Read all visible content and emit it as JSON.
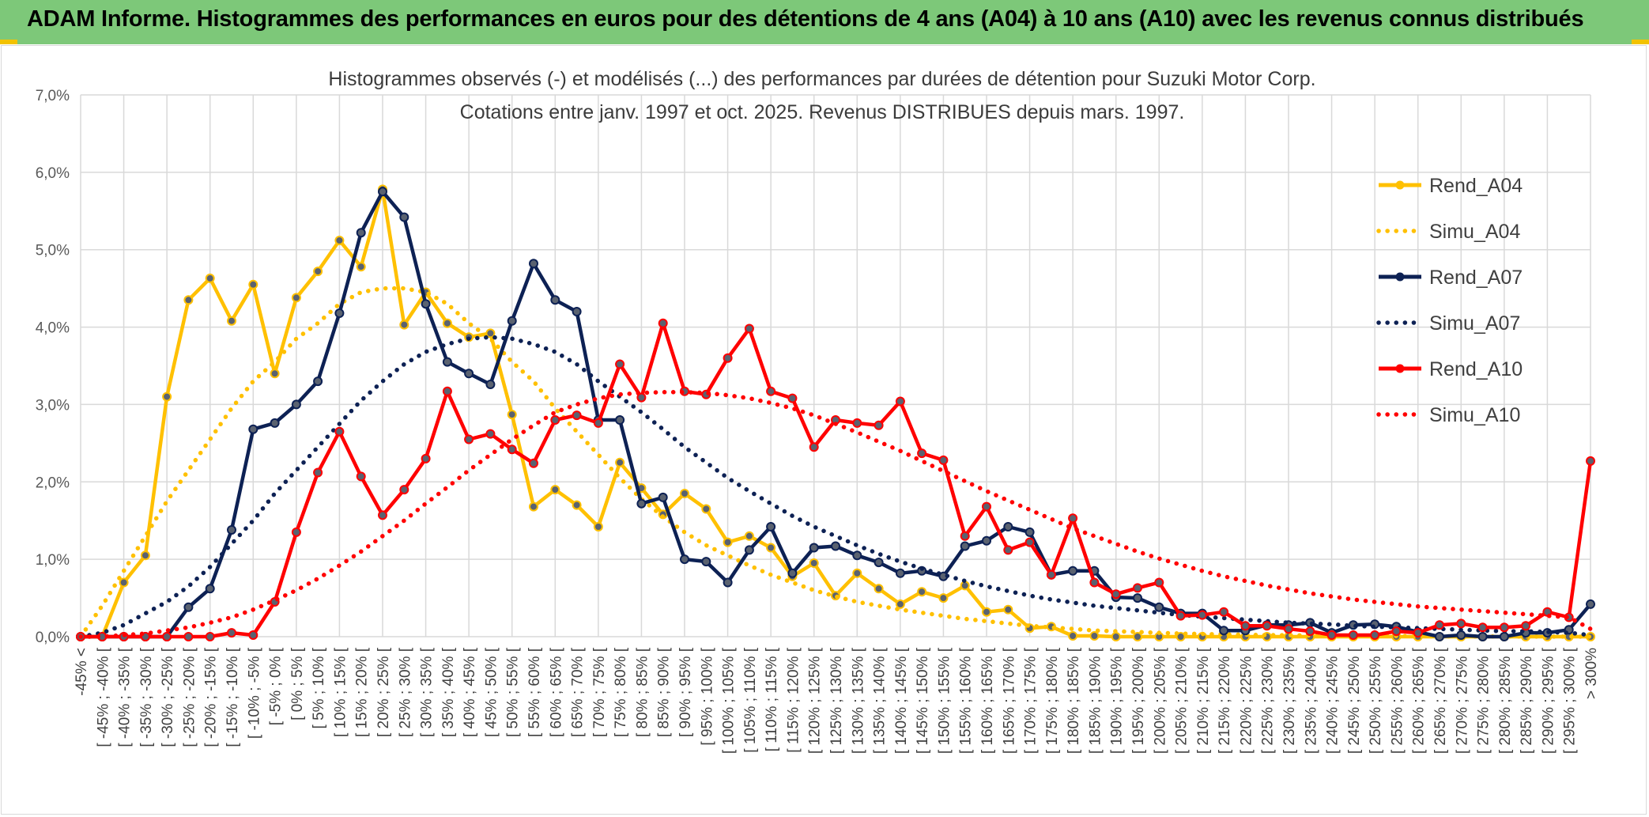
{
  "banner": {
    "title": "ADAM Informe. Histogrammes des performances en euros pour des détentions de 4 ans (A04) à 10 ans (A10) avec les revenus connus distribués"
  },
  "colors": {
    "banner_bg": "#7dc879",
    "accent": "#f2c200",
    "a04": "#ffc000",
    "a07": "#0d2154",
    "a10": "#ff0000",
    "grid": "#d9d9d9"
  },
  "chart_data": {
    "type": "line",
    "title": "Histogrammes observés (-) et modélisés (...) des performances par durées de détention pour Suzuki Motor Corp.",
    "subtitle": "Cotations entre janv. 1997 et oct. 2025. Revenus DISTRIBUES depuis mars. 1997.",
    "xlabel": "",
    "ylabel": "",
    "ylim": [
      0,
      7
    ],
    "y_ticks": [
      "0,0%",
      "1,0%",
      "2,0%",
      "3,0%",
      "4,0%",
      "5,0%",
      "6,0%",
      "7,0%"
    ],
    "grid": true,
    "legend_position": "right",
    "categories": [
      "-45% <",
      "[ -45% ; -40% [",
      "[ -40% ; -35% [",
      "[ -35% ; -30% [",
      "[ -30% ; -25% [",
      "[ -25% ; -20% [",
      "[ -20% ; -15% [",
      "[ -15% ; -10% [",
      "[ -10% ; -5% [",
      "[ -5% ; 0% [",
      "[ 0% ; 5% [",
      "[ 5% ; 10% [",
      "[ 10% ; 15% [",
      "[ 15% ; 20% [",
      "[ 20% ; 25% [",
      "[ 25% ; 30% [",
      "[ 30% ; 35% [",
      "[ 35% ; 40% [",
      "[ 40% ; 45% [",
      "[ 45% ; 50% [",
      "[ 50% ; 55% [",
      "[ 55% ; 60% [",
      "[ 60% ; 65% [",
      "[ 65% ; 70% [",
      "[ 70% ; 75% [",
      "[ 75% ; 80% [",
      "[ 80% ; 85% [",
      "[ 85% ; 90% [",
      "[ 90% ; 95% [",
      "[ 95% ; 100% [",
      "[ 100% ; 105% [",
      "[ 105% ; 110% [",
      "[ 110% ; 115% [",
      "[ 115% ; 120% [",
      "[ 120% ; 125% [",
      "[ 125% ; 130% [",
      "[ 130% ; 135% [",
      "[ 135% ; 140% [",
      "[ 140% ; 145% [",
      "[ 145% ; 150% [",
      "[ 150% ; 155% [",
      "[ 155% ; 160% [",
      "[ 160% ; 165% [",
      "[ 165% ; 170% [",
      "[ 170% ; 175% [",
      "[ 175% ; 180% [",
      "[ 180% ; 185% [",
      "[ 185% ; 190% [",
      "[ 190% ; 195% [",
      "[ 195% ; 200% [",
      "[ 200% ; 205% [",
      "[ 205% ; 210% [",
      "[ 210% ; 215% [",
      "[ 215% ; 220% [",
      "[ 220% ; 225% [",
      "[ 225% ; 230% [",
      "[ 230% ; 235% [",
      "[ 235% ; 240% [",
      "[ 240% ; 245% [",
      "[ 245% ; 250% [",
      "[ 250% ; 255% [",
      "[ 255% ; 260% [",
      "[ 260% ; 265% [",
      "[ 265% ; 270% [",
      "[ 270% ; 275% [",
      "[ 275% ; 280% [",
      "[ 280% ; 285% [",
      "[ 285% ; 290% [",
      "[ 290% ; 295% [",
      "[ 295% ; 300% [",
      "> 300%"
    ],
    "series": [
      {
        "name": "Rend_A04",
        "style": "solid",
        "color": "#ffc000",
        "values": [
          0,
          0,
          0.7,
          1.05,
          3.1,
          4.35,
          4.63,
          4.08,
          4.55,
          3.4,
          4.38,
          4.72,
          5.12,
          4.78,
          5.78,
          4.03,
          4.45,
          4.05,
          3.87,
          3.92,
          2.87,
          1.68,
          1.9,
          1.7,
          1.42,
          2.25,
          1.92,
          1.58,
          1.85,
          1.65,
          1.22,
          1.3,
          1.15,
          0.78,
          0.95,
          0.53,
          0.82,
          0.62,
          0.42,
          0.58,
          0.5,
          0.66,
          0.32,
          0.35,
          0.11,
          0.13,
          0.01,
          0.01,
          0,
          0,
          0,
          0,
          0,
          0,
          0,
          0,
          0,
          0,
          0,
          0,
          0,
          0,
          0,
          0,
          0,
          0,
          0,
          0,
          0,
          0,
          0
        ]
      },
      {
        "name": "Simu_A04",
        "style": "dotted",
        "color": "#ffc000",
        "values": [
          0,
          0.4,
          0.85,
          1.3,
          1.75,
          2.15,
          2.55,
          2.95,
          3.3,
          3.55,
          3.85,
          4.05,
          4.3,
          4.45,
          4.5,
          4.5,
          4.45,
          4.3,
          4.05,
          3.85,
          3.55,
          3.3,
          2.95,
          2.65,
          2.35,
          2.05,
          1.78,
          1.55,
          1.35,
          1.18,
          1.05,
          0.92,
          0.8,
          0.7,
          0.6,
          0.52,
          0.45,
          0.4,
          0.35,
          0.31,
          0.27,
          0.23,
          0.2,
          0.17,
          0.14,
          0.12,
          0.1,
          0.08,
          0.07,
          0.06,
          0.05,
          0.04,
          0.035,
          0.03,
          0.025,
          0.02,
          0.018,
          0.015,
          0.012,
          0.01,
          0.01,
          0.008,
          0.006,
          0.005,
          0.004,
          0.003,
          0.002,
          0.002,
          0.001,
          0.001,
          0
        ]
      },
      {
        "name": "Rend_A07",
        "style": "solid",
        "color": "#0d2154",
        "values": [
          0,
          0,
          0,
          0,
          0,
          0.38,
          0.62,
          1.38,
          2.68,
          2.76,
          3.0,
          3.3,
          4.18,
          5.22,
          5.75,
          5.42,
          4.3,
          3.55,
          3.4,
          3.26,
          4.08,
          4.82,
          4.35,
          4.2,
          2.8,
          2.8,
          1.72,
          1.8,
          1.0,
          0.97,
          0.7,
          1.12,
          1.42,
          0.82,
          1.15,
          1.17,
          1.05,
          0.96,
          0.82,
          0.85,
          0.78,
          1.17,
          1.24,
          1.42,
          1.35,
          0.8,
          0.85,
          0.85,
          0.51,
          0.5,
          0.38,
          0.3,
          0.3,
          0.08,
          0.08,
          0.15,
          0.15,
          0.18,
          0.05,
          0.15,
          0.16,
          0.13,
          0.06,
          0,
          0.02,
          0,
          0,
          0.05,
          0.05,
          0.09,
          0.42
        ]
      },
      {
        "name": "Simu_A07",
        "style": "dotted",
        "color": "#0d2154",
        "values": [
          0,
          0.05,
          0.15,
          0.3,
          0.45,
          0.65,
          0.9,
          1.2,
          1.5,
          1.85,
          2.15,
          2.45,
          2.75,
          3.05,
          3.3,
          3.52,
          3.68,
          3.78,
          3.85,
          3.87,
          3.85,
          3.78,
          3.68,
          3.52,
          3.3,
          3.1,
          2.9,
          2.68,
          2.45,
          2.25,
          2.05,
          1.88,
          1.72,
          1.56,
          1.42,
          1.3,
          1.18,
          1.07,
          0.97,
          0.88,
          0.8,
          0.72,
          0.65,
          0.59,
          0.53,
          0.48,
          0.44,
          0.4,
          0.37,
          0.34,
          0.31,
          0.28,
          0.26,
          0.24,
          0.22,
          0.2,
          0.18,
          0.17,
          0.16,
          0.14,
          0.13,
          0.12,
          0.11,
          0.1,
          0.09,
          0.08,
          0.07,
          0.07,
          0.06,
          0.05,
          0.02
        ]
      },
      {
        "name": "Rend_A10",
        "style": "solid",
        "color": "#ff0000",
        "values": [
          0,
          0,
          0,
          0,
          0,
          0,
          0,
          0.05,
          0.02,
          0.45,
          1.35,
          2.12,
          2.65,
          2.07,
          1.57,
          1.9,
          2.3,
          3.17,
          2.55,
          2.62,
          2.42,
          2.24,
          2.8,
          2.86,
          2.76,
          3.52,
          3.09,
          4.05,
          3.17,
          3.13,
          3.6,
          3.98,
          3.17,
          3.08,
          2.45,
          2.8,
          2.76,
          2.73,
          3.04,
          2.37,
          2.28,
          1.3,
          1.68,
          1.12,
          1.22,
          0.8,
          1.53,
          0.7,
          0.55,
          0.63,
          0.7,
          0.27,
          0.28,
          0.32,
          0.14,
          0.14,
          0.1,
          0.07,
          0.02,
          0.02,
          0.02,
          0.07,
          0.05,
          0.15,
          0.17,
          0.12,
          0.12,
          0.14,
          0.32,
          0.25,
          2.27
        ]
      },
      {
        "name": "Simu_A10",
        "style": "dotted",
        "color": "#ff0000",
        "values": [
          0,
          0,
          0.02,
          0.04,
          0.08,
          0.12,
          0.18,
          0.25,
          0.35,
          0.47,
          0.6,
          0.75,
          0.92,
          1.1,
          1.3,
          1.5,
          1.72,
          1.93,
          2.15,
          2.35,
          2.55,
          2.73,
          2.9,
          3.0,
          3.08,
          3.13,
          3.15,
          3.16,
          3.16,
          3.15,
          3.12,
          3.08,
          3.02,
          2.95,
          2.86,
          2.75,
          2.64,
          2.52,
          2.4,
          2.27,
          2.14,
          2.01,
          1.88,
          1.76,
          1.64,
          1.52,
          1.4,
          1.3,
          1.2,
          1.1,
          1.01,
          0.93,
          0.85,
          0.78,
          0.72,
          0.66,
          0.61,
          0.56,
          0.52,
          0.48,
          0.45,
          0.42,
          0.39,
          0.37,
          0.35,
          0.33,
          0.31,
          0.29,
          0.27,
          0.25,
          0.1
        ]
      }
    ]
  }
}
